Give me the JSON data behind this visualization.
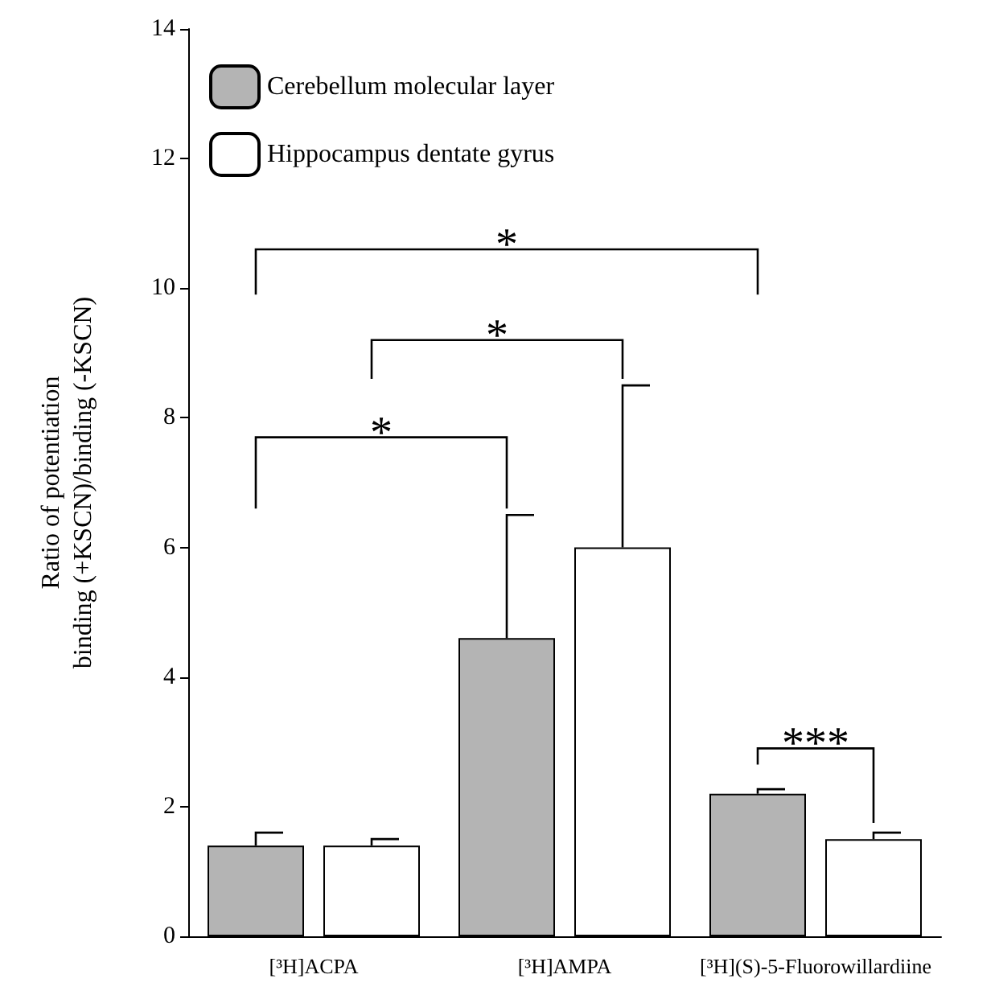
{
  "chart_data": {
    "type": "bar",
    "ylabel": "Ratio of potentiation\nbinding (+KSCN)/binding (-KSCN)",
    "categories": [
      "[³H]ACPA",
      "[³H]AMPA",
      "[³H](S)-5-Fluorowillardiine"
    ],
    "series": [
      {
        "name": "Cerebellum molecular layer",
        "color": "#b4b4b4",
        "values": [
          1.4,
          4.6,
          2.2
        ],
        "errors": [
          [
            1.4,
            1.6
          ],
          [
            4.6,
            6.5
          ],
          [
            2.2,
            2.27
          ]
        ]
      },
      {
        "name": "Hippocampus dentate gyrus",
        "color": "#ffffff",
        "values": [
          1.4,
          6.0,
          1.5
        ],
        "errors": [
          [
            1.4,
            1.5
          ],
          [
            6.0,
            8.5
          ],
          [
            1.5,
            1.6
          ]
        ]
      }
    ],
    "ylim": [
      0,
      14
    ],
    "yticks": [
      0,
      2,
      4,
      6,
      8,
      10,
      12,
      14
    ],
    "grid": false,
    "legend": "top left",
    "annotations": [
      "*",
      "*",
      "*",
      "***"
    ]
  }
}
